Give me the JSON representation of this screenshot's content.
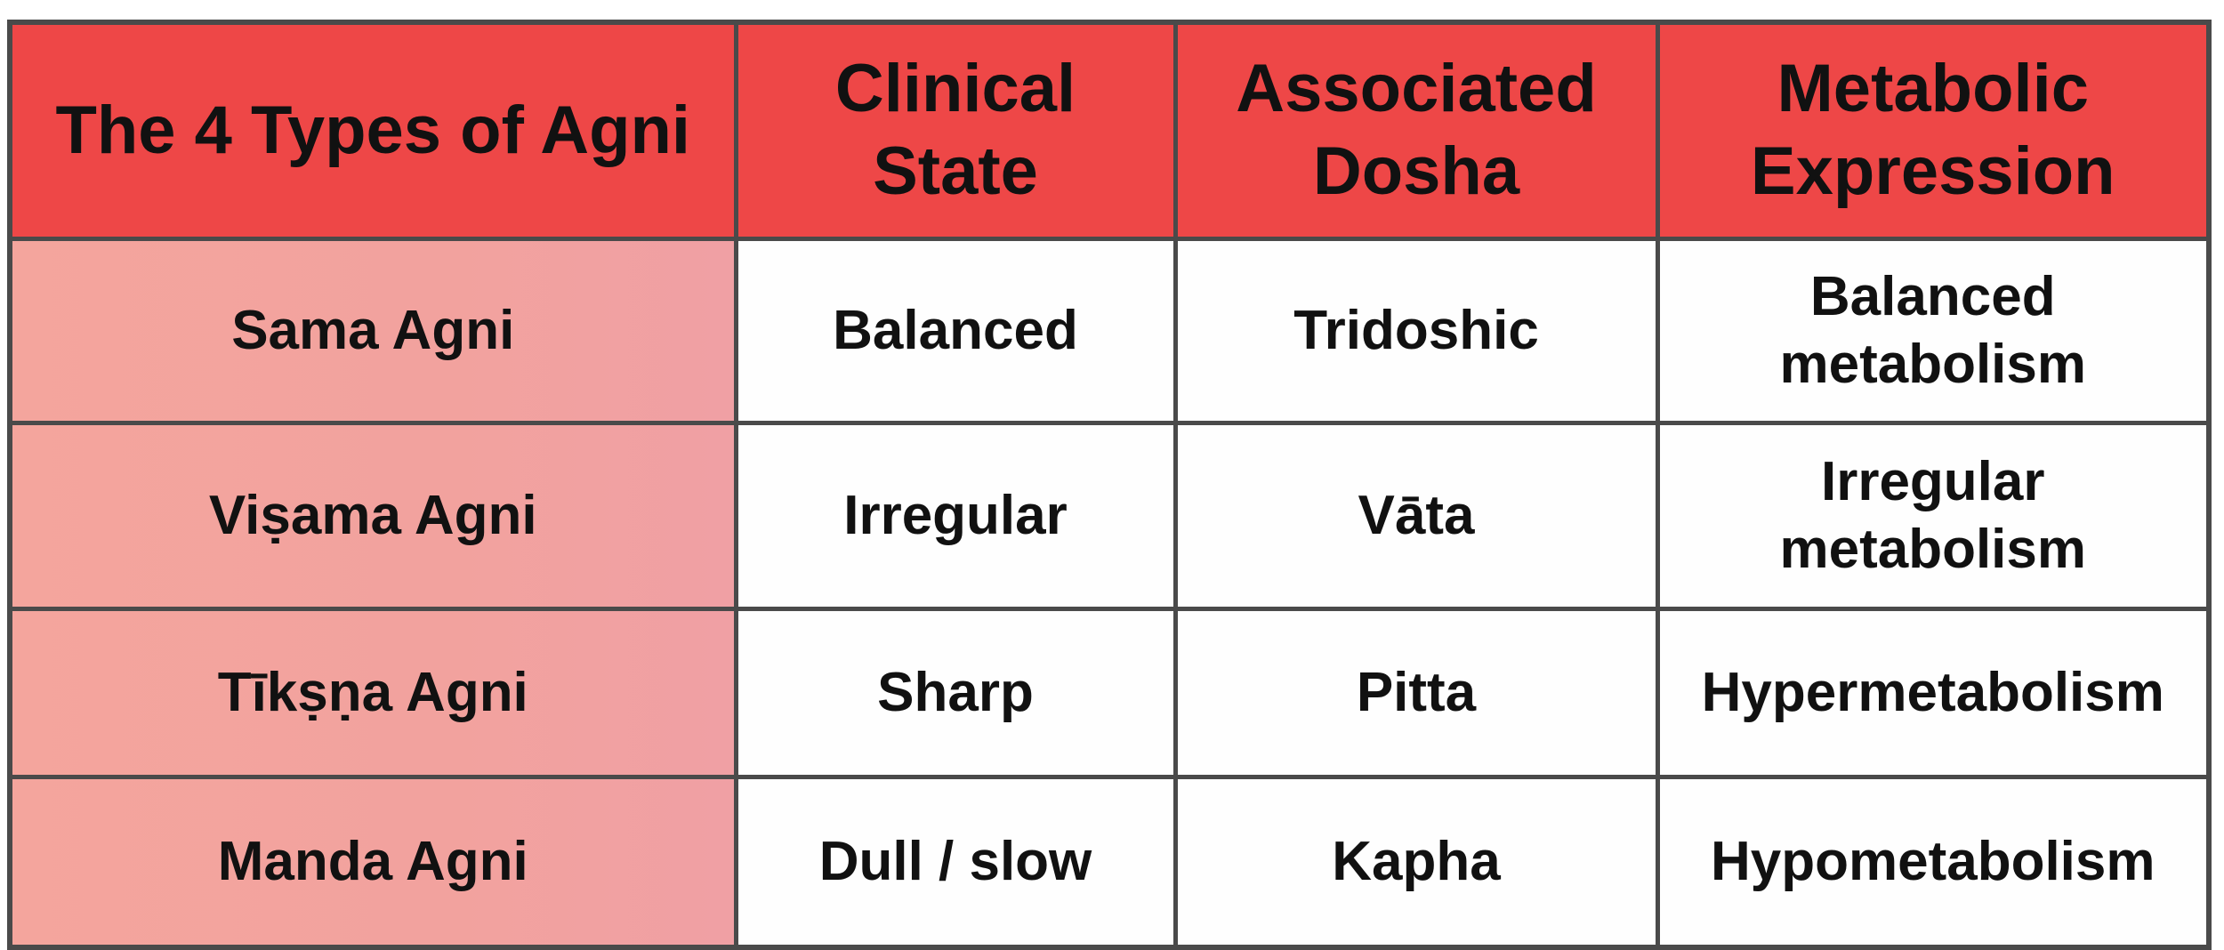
{
  "table": {
    "headers": [
      "The 4 Types of Agni",
      "Clinical State",
      "Associated Dosha",
      "Metabolic Expression"
    ],
    "rows": [
      [
        "Sama Agni",
        "Balanced",
        "Tridoshic",
        "Balanced metabolism"
      ],
      [
        "Viṣama Agni",
        "Irregular",
        "Vāta",
        "Irregular metabolism"
      ],
      [
        "Tīkṣṇa Agni",
        "Sharp",
        "Pitta",
        "Hypermetabolism"
      ],
      [
        "Manda Agni",
        "Dull / slow",
        "Kapha",
        "Hypometabolism"
      ]
    ]
  }
}
